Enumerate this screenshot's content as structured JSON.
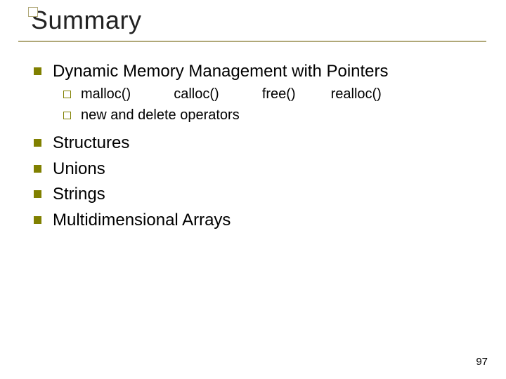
{
  "title": "Summary",
  "items": [
    {
      "label": "Dynamic Memory Management with Pointers",
      "sub": [
        "malloc()           calloc()           free()         realloc()",
        "new and delete operators"
      ]
    },
    {
      "label": "Structures"
    },
    {
      "label": "Unions"
    },
    {
      "label": "Strings"
    },
    {
      "label": "Multidimensional Arrays"
    }
  ],
  "page_number": "97",
  "colors": {
    "accent": "#b0a878",
    "bullet": "#808000",
    "text": "#000000",
    "background": "#ffffff"
  },
  "font_sizes": {
    "title": 36,
    "level1": 24,
    "level2": 20,
    "pagenum": 15
  }
}
